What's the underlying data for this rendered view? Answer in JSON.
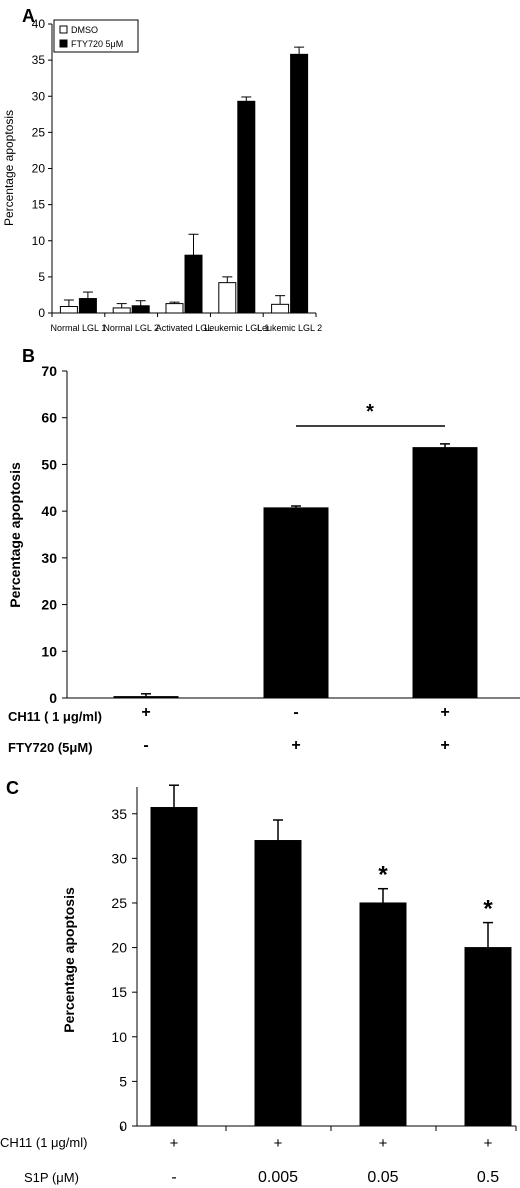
{
  "panels": {
    "a": {
      "letter": "A"
    },
    "b": {
      "letter": "B"
    },
    "c": {
      "letter": "C"
    }
  },
  "chart_data": [
    {
      "type": "bar",
      "panel": "A",
      "ylabel": "Percentage apoptosis",
      "xlabel": "",
      "ylim": [
        0,
        40
      ],
      "yticks": [
        0,
        5,
        10,
        15,
        20,
        25,
        30,
        35,
        40
      ],
      "categories": [
        "Normal LGL 1",
        "Normal LGL 2",
        "Activated LGL",
        "Leukemic LGL 1",
        "Leukemic LGL 2"
      ],
      "legend_position": "top-left",
      "series": [
        {
          "name": "DMSO",
          "color": "#ffffff",
          "values": [
            0.9,
            0.7,
            1.3,
            4.2,
            1.2
          ],
          "errors": [
            0.9,
            0.6,
            0.2,
            0.8,
            1.2
          ]
        },
        {
          "name": "FTY720 5μM",
          "color": "#000000",
          "values": [
            2.0,
            1.0,
            8.0,
            29.3,
            35.8
          ],
          "errors": [
            0.9,
            0.7,
            2.9,
            0.6,
            1.0
          ]
        }
      ]
    },
    {
      "type": "bar",
      "panel": "B",
      "ylabel": "Percentage apoptosis",
      "xlabel": "",
      "ylim": [
        0,
        70
      ],
      "yticks": [
        0,
        10,
        20,
        30,
        40,
        50,
        60,
        70
      ],
      "values": [
        0.3,
        40.7,
        53.6
      ],
      "errors": [
        0.6,
        0.4,
        0.8
      ],
      "conditions": [
        {
          "label": "CH11 ( 1 μg/ml)",
          "values": [
            "+",
            "-",
            "+"
          ]
        },
        {
          "label": "FTY720 (5μM)",
          "values": [
            "-",
            "+",
            "+"
          ]
        }
      ],
      "significance": {
        "between": [
          1,
          2
        ],
        "marker": "*"
      }
    },
    {
      "type": "bar",
      "panel": "C",
      "ylabel": "Percentage apoptosis",
      "xlabel": "",
      "ylim": [
        0,
        38
      ],
      "yticks": [
        0,
        5,
        10,
        15,
        20,
        25,
        30,
        35
      ],
      "values": [
        35.7,
        32.0,
        25.0,
        20.0
      ],
      "errors": [
        2.5,
        2.3,
        1.6,
        2.8
      ],
      "markers": [
        "",
        "",
        "*",
        "*"
      ],
      "conditions": [
        {
          "label": "CH11 (1 μg/ml)",
          "values": [
            "+",
            "+",
            "+",
            "+"
          ]
        },
        {
          "label": "S1P (μM)",
          "values": [
            "-",
            "0.005",
            "0.05",
            "0.5"
          ]
        }
      ]
    }
  ]
}
